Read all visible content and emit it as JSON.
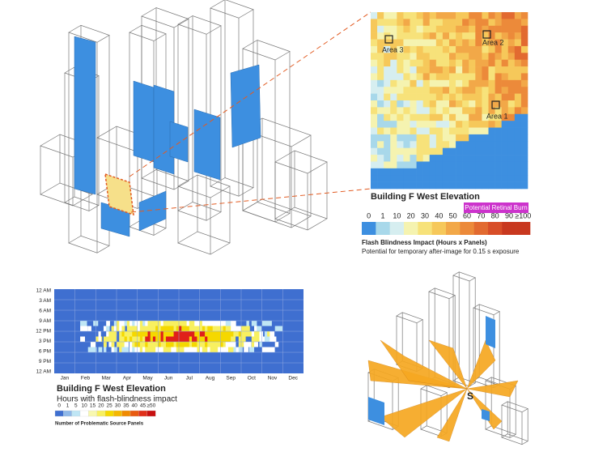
{
  "elevation": {
    "areas": [
      "Area 3",
      "Area 2",
      "Area 1"
    ],
    "title": "Building F West Elevation",
    "burn_label": "Potential Retinal Burn",
    "legend": {
      "ticks": [
        "0",
        "1",
        "10",
        "20",
        "30",
        "40",
        "50",
        "60",
        "70",
        "80",
        "90",
        "≥100"
      ],
      "title": "Flash Blindness Impact (Hours x Panels)",
      "subtitle": "Potential for temporary after-image for 0.15 s exposure"
    }
  },
  "annual": {
    "hour_labels": [
      "12 AM",
      "3 AM",
      "6 AM",
      "9 AM",
      "12 PM",
      "3 PM",
      "6 PM",
      "9 PM",
      "12 AM"
    ],
    "month_labels": [
      "Jan",
      "Feb",
      "Mar",
      "Apr",
      "May",
      "Jun",
      "Jul",
      "Aug",
      "Sep",
      "Oct",
      "Nov",
      "Dec"
    ],
    "title": "Building F West Elevation",
    "subtitle": "Hours with flash-blindness impact",
    "legend": {
      "ticks": [
        "0",
        "1",
        "5",
        "10",
        "15",
        "20",
        "25",
        "30",
        "35",
        "40",
        "45",
        "≥50"
      ],
      "title": "Number of Problematic Source Panels"
    }
  },
  "solar_view": {
    "label": "S"
  }
}
